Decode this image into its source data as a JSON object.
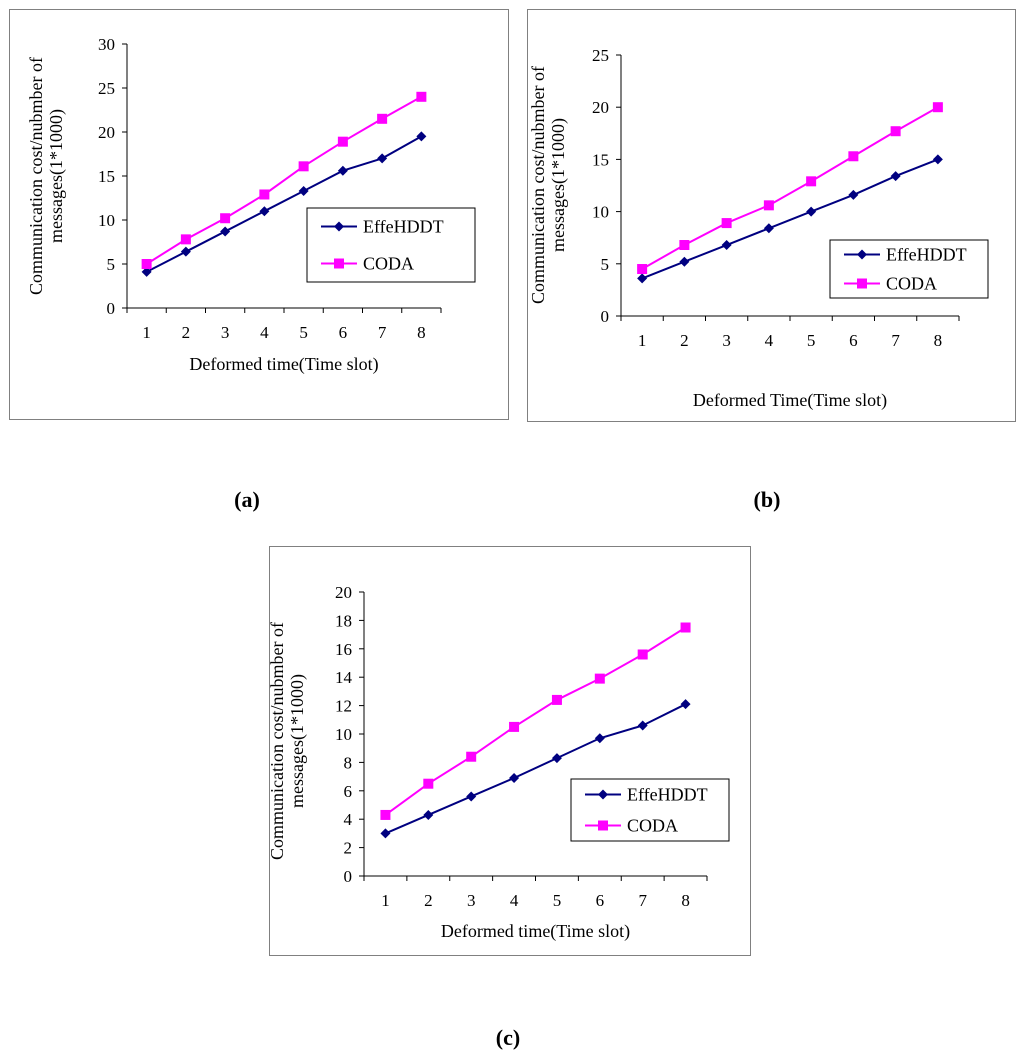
{
  "colors": {
    "effehddt": "#000080",
    "coda": "#ff00ff",
    "axis": "#000000",
    "frame": "#808080"
  },
  "chart_data": [
    {
      "type": "line",
      "caption": "(a)",
      "xlabel": "Deformed time(Time slot)",
      "ylabel_line1": "Communication cost/nubmber of",
      "ylabel_line2": "messages(1*1000)",
      "categories": [
        "1",
        "2",
        "3",
        "4",
        "5",
        "6",
        "7",
        "8"
      ],
      "ylim": [
        0,
        30
      ],
      "yticks": [
        0,
        5,
        10,
        15,
        20,
        25,
        30
      ],
      "legend_position": "right",
      "series": [
        {
          "name": "EffeHDDT",
          "marker": "diamond",
          "values": [
            4.1,
            6.4,
            8.7,
            11.0,
            13.3,
            15.6,
            17.0,
            19.5
          ]
        },
        {
          "name": "CODA",
          "marker": "square",
          "values": [
            5.0,
            7.8,
            10.2,
            12.9,
            16.1,
            18.9,
            21.5,
            24.0
          ]
        }
      ]
    },
    {
      "type": "line",
      "caption": "(b)",
      "xlabel": "Deformed Time(Time slot)",
      "ylabel_line1": "Communication cost/nubmber of",
      "ylabel_line2": "messages(1*1000)",
      "categories": [
        "1",
        "2",
        "3",
        "4",
        "5",
        "6",
        "7",
        "8"
      ],
      "ylim": [
        0,
        25
      ],
      "yticks": [
        0,
        5,
        10,
        15,
        20,
        25
      ],
      "legend_position": "bottom-right",
      "series": [
        {
          "name": "EffeHDDT",
          "marker": "diamond",
          "values": [
            3.6,
            5.2,
            6.8,
            8.4,
            10.0,
            11.6,
            13.4,
            15.0
          ]
        },
        {
          "name": "CODA",
          "marker": "square",
          "values": [
            4.5,
            6.8,
            8.9,
            10.6,
            12.9,
            15.3,
            17.7,
            20.0
          ]
        }
      ]
    },
    {
      "type": "line",
      "caption": "(c)",
      "xlabel": "Deformed time(Time slot)",
      "ylabel_line1": "Communication cost/nubmber of",
      "ylabel_line2": "messages(1*1000)",
      "categories": [
        "1",
        "2",
        "3",
        "4",
        "5",
        "6",
        "7",
        "8"
      ],
      "ylim": [
        0,
        20
      ],
      "yticks": [
        0,
        2,
        4,
        6,
        8,
        10,
        12,
        14,
        16,
        18,
        20
      ],
      "legend_position": "right",
      "series": [
        {
          "name": "EffeHDDT",
          "marker": "diamond",
          "values": [
            3.0,
            4.3,
            5.6,
            6.9,
            8.3,
            9.7,
            10.6,
            12.1
          ]
        },
        {
          "name": "CODA",
          "marker": "square",
          "values": [
            4.3,
            6.5,
            8.4,
            10.5,
            12.4,
            13.9,
            15.6,
            17.5
          ]
        }
      ]
    }
  ]
}
